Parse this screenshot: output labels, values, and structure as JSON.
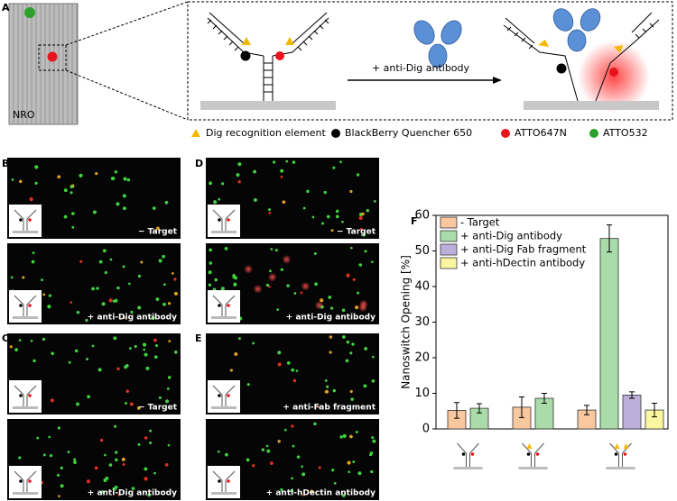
{
  "panel_labels": [
    "A",
    "B",
    "C",
    "D",
    "E",
    "F"
  ],
  "panel_a": {
    "origami_label": "NRO",
    "arrow_label": "+ anti-Dig antibody",
    "legend": [
      "Dig recognition element",
      "BlackBerry Quencher 650",
      "ATTO647N",
      "ATTO532"
    ]
  },
  "images": [
    "− Target",
    "+ anti-Dig antibody",
    "− Target",
    "+ anti-Dig antibody",
    "− Target",
    "+ anti-Dig antibody",
    "+ anti-Fab fragment",
    "+ anti-hDectin antibody"
  ],
  "chart_data": {
    "type": "bar",
    "ylabel": "Nanoswitch Opening [%]",
    "categories": [
      null,
      null,
      null
    ],
    "series": [
      {
        "name": "- Target",
        "color": "#f9c89e",
        "values": [
          5.2,
          6.1,
          5.3
        ],
        "errors": [
          2.2,
          2.9,
          1.3
        ]
      },
      {
        "name": "+ anti-Dig antibody",
        "color": "#aadcaa",
        "values": [
          5.8,
          8.6,
          53.5
        ],
        "errors": [
          1.3,
          1.4,
          3.8
        ]
      },
      {
        "name": "+ anti-Dig Fab fragment",
        "color": "#bcaedb",
        "values": [
          null,
          null,
          9.5
        ],
        "errors": [
          null,
          null,
          0.9
        ]
      },
      {
        "name": "+ anti-hDectin antibody",
        "color": "#fbf6a0",
        "values": [
          null,
          null,
          5.3
        ],
        "errors": [
          null,
          null,
          1.9
        ]
      }
    ],
    "ylim": [
      0,
      60
    ],
    "yticks": [
      0,
      10,
      20,
      30,
      40,
      50,
      60
    ],
    "legend": "upper left"
  }
}
